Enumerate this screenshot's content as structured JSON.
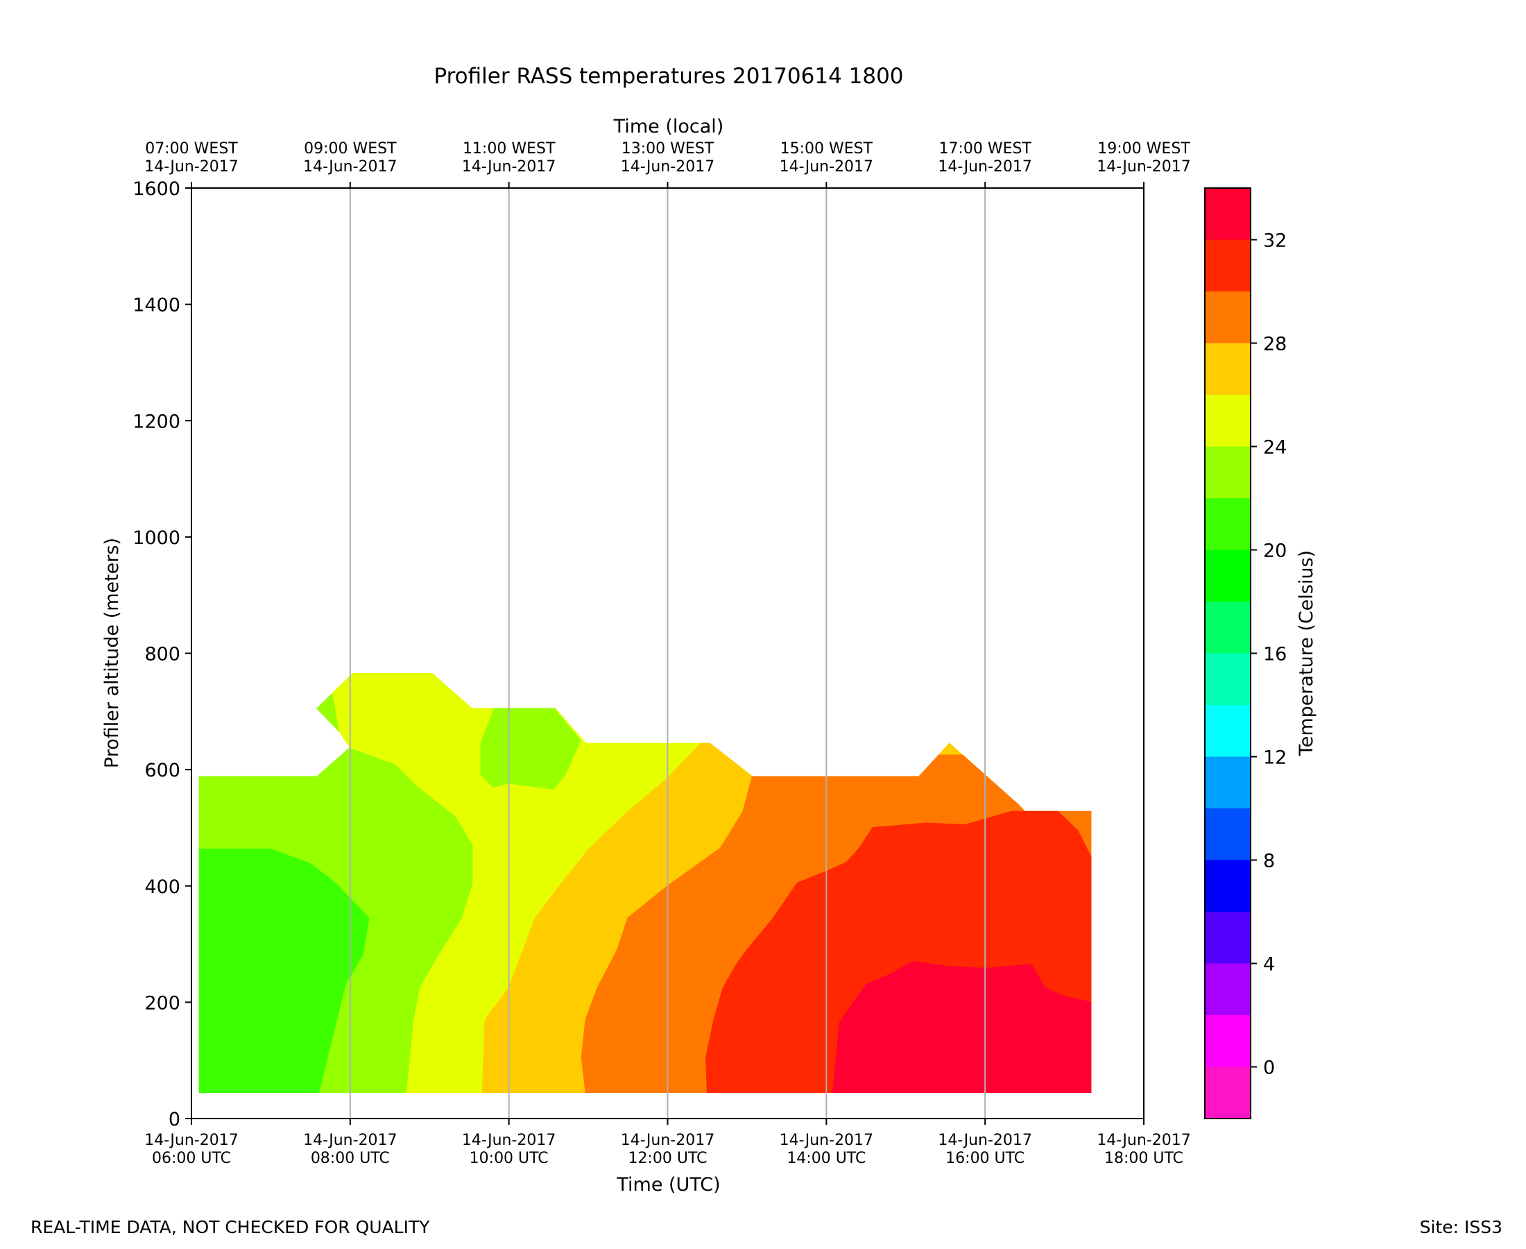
{
  "chart_data": {
    "type": "heatmap",
    "subtype": "filled-contour",
    "title": "Profiler RASS temperatures 20170614 1800",
    "xlabel": "Time (UTC)",
    "xlabel_top": "Time (local)",
    "ylabel": "Profiler altitude (meters)",
    "colorbar_label": "Temperature (Celsius)",
    "footer_left": "REAL-TIME DATA, NOT CHECKED FOR QUALITY",
    "footer_right": "Site: ISS3",
    "xlim": [
      "2017-06-14 06:00",
      "2017-06-14 18:00"
    ],
    "ylim": [
      0,
      1600
    ],
    "grid": "vertical",
    "x_ticks_bottom": [
      {
        "x": "2017-06-14 06:00",
        "line1": "14-Jun-2017",
        "line2": "06:00 UTC"
      },
      {
        "x": "2017-06-14 08:00",
        "line1": "14-Jun-2017",
        "line2": "08:00 UTC"
      },
      {
        "x": "2017-06-14 10:00",
        "line1": "14-Jun-2017",
        "line2": "10:00 UTC"
      },
      {
        "x": "2017-06-14 12:00",
        "line1": "14-Jun-2017",
        "line2": "12:00 UTC"
      },
      {
        "x": "2017-06-14 14:00",
        "line1": "14-Jun-2017",
        "line2": "14:00 UTC"
      },
      {
        "x": "2017-06-14 16:00",
        "line1": "14-Jun-2017",
        "line2": "16:00 UTC"
      },
      {
        "x": "2017-06-14 18:00",
        "line1": "14-Jun-2017",
        "line2": "18:00 UTC"
      }
    ],
    "x_ticks_top": [
      {
        "x": "2017-06-14 06:00",
        "line1": "07:00 WEST",
        "line2": "14-Jun-2017"
      },
      {
        "x": "2017-06-14 08:00",
        "line1": "09:00 WEST",
        "line2": "14-Jun-2017"
      },
      {
        "x": "2017-06-14 10:00",
        "line1": "11:00 WEST",
        "line2": "14-Jun-2017"
      },
      {
        "x": "2017-06-14 12:00",
        "line1": "13:00 WEST",
        "line2": "14-Jun-2017"
      },
      {
        "x": "2017-06-14 14:00",
        "line1": "15:00 WEST",
        "line2": "14-Jun-2017"
      },
      {
        "x": "2017-06-14 16:00",
        "line1": "17:00 WEST",
        "line2": "14-Jun-2017"
      },
      {
        "x": "2017-06-14 18:00",
        "line1": "19:00 WEST",
        "line2": "14-Jun-2017"
      }
    ],
    "y_ticks": [
      0,
      200,
      400,
      600,
      800,
      1000,
      1200,
      1400,
      1600
    ],
    "colorbar": {
      "boundaries": [
        -2,
        0,
        2,
        4,
        6,
        8,
        10,
        12,
        14,
        16,
        18,
        20,
        22,
        24,
        26,
        28,
        30,
        32,
        34
      ],
      "colors": [
        "#ff14c8",
        "#ff00ff",
        "#aa00ff",
        "#5500ff",
        "#0000ff",
        "#0050ff",
        "#00a0ff",
        "#00ffff",
        "#00ffb4",
        "#00ff64",
        "#00ff00",
        "#3cff00",
        "#96ff00",
        "#e6ff00",
        "#ffcc00",
        "#ff7800",
        "#ff2800",
        "#ff0032"
      ],
      "ticks": [
        0,
        4,
        8,
        12,
        16,
        20,
        24,
        28,
        32
      ]
    },
    "contour_regions": [
      {
        "level": 20,
        "color": "#3cff00",
        "points": [
          [
            "2017-06-14 06:06",
            45
          ],
          [
            "2017-06-14 06:06",
            465
          ],
          [
            "2017-06-14 07:00",
            465
          ],
          [
            "2017-06-14 07:30",
            440
          ],
          [
            "2017-06-14 07:50",
            405
          ],
          [
            "2017-06-14 08:15",
            345
          ],
          [
            "2017-06-14 08:10",
            280
          ],
          [
            "2017-06-14 07:57",
            230
          ],
          [
            "2017-06-14 07:37",
            45
          ]
        ]
      },
      {
        "level": 22,
        "color": "#96ff00",
        "points": [
          [
            "2017-06-14 07:37",
            45
          ],
          [
            "2017-06-14 07:57",
            230
          ],
          [
            "2017-06-14 08:10",
            280
          ],
          [
            "2017-06-14 08:15",
            345
          ],
          [
            "2017-06-14 07:50",
            405
          ],
          [
            "2017-06-14 07:30",
            440
          ],
          [
            "2017-06-14 07:00",
            465
          ],
          [
            "2017-06-14 06:06",
            465
          ],
          [
            "2017-06-14 06:06",
            588
          ],
          [
            "2017-06-14 07:35",
            588
          ],
          [
            "2017-06-14 08:00",
            638
          ],
          [
            "2017-06-14 08:34",
            610
          ],
          [
            "2017-06-14 08:52",
            570
          ],
          [
            "2017-06-14 09:20",
            520
          ],
          [
            "2017-06-14 09:33",
            470
          ],
          [
            "2017-06-14 09:33",
            405
          ],
          [
            "2017-06-14 09:25",
            345
          ],
          [
            "2017-06-14 09:07",
            280
          ],
          [
            "2017-06-14 08:53",
            225
          ],
          [
            "2017-06-14 08:48",
            165
          ],
          [
            "2017-06-14 08:43",
            45
          ]
        ]
      },
      {
        "level": 22,
        "color": "#96ff00",
        "points": [
          [
            "2017-06-14 07:35",
            705
          ],
          [
            "2017-06-14 07:47",
            732
          ],
          [
            "2017-06-14 07:52",
            665
          ]
        ]
      },
      {
        "level": 22,
        "color": "#96ff00",
        "points": [
          [
            "2017-06-14 09:38",
            590
          ],
          [
            "2017-06-14 09:48",
            568
          ],
          [
            "2017-06-14 10:00",
            575
          ],
          [
            "2017-06-14 10:34",
            565
          ],
          [
            "2017-06-14 10:43",
            590
          ],
          [
            "2017-06-14 10:55",
            650
          ],
          [
            "2017-06-14 10:35",
            705
          ],
          [
            "2017-06-14 09:48",
            705
          ],
          [
            "2017-06-14 09:38",
            645
          ]
        ]
      },
      {
        "level": 24,
        "color": "#e6ff00",
        "points": [
          [
            "2017-06-14 08:43",
            45
          ],
          [
            "2017-06-14 08:48",
            165
          ],
          [
            "2017-06-14 08:53",
            225
          ],
          [
            "2017-06-14 09:07",
            280
          ],
          [
            "2017-06-14 09:25",
            345
          ],
          [
            "2017-06-14 09:33",
            405
          ],
          [
            "2017-06-14 09:33",
            470
          ],
          [
            "2017-06-14 09:20",
            520
          ],
          [
            "2017-06-14 08:52",
            570
          ],
          [
            "2017-06-14 08:34",
            610
          ],
          [
            "2017-06-14 08:00",
            638
          ],
          [
            "2017-06-14 07:52",
            665
          ],
          [
            "2017-06-14 07:47",
            732
          ],
          [
            "2017-06-14 08:02",
            765
          ],
          [
            "2017-06-14 09:02",
            765
          ],
          [
            "2017-06-14 09:32",
            705
          ],
          [
            "2017-06-14 09:48",
            705
          ],
          [
            "2017-06-14 09:38",
            645
          ],
          [
            "2017-06-14 09:38",
            590
          ],
          [
            "2017-06-14 09:48",
            568
          ],
          [
            "2017-06-14 10:00",
            575
          ],
          [
            "2017-06-14 10:34",
            565
          ],
          [
            "2017-06-14 10:43",
            590
          ],
          [
            "2017-06-14 10:55",
            650
          ],
          [
            "2017-06-14 10:35",
            705
          ],
          [
            "2017-06-14 10:58",
            645
          ],
          [
            "2017-06-14 12:25",
            645
          ],
          [
            "2017-06-14 12:00",
            585
          ],
          [
            "2017-06-14 11:30",
            528
          ],
          [
            "2017-06-14 11:00",
            462
          ],
          [
            "2017-06-14 10:40",
            405
          ],
          [
            "2017-06-14 10:20",
            345
          ],
          [
            "2017-06-14 10:00",
            225
          ],
          [
            "2017-06-14 09:42",
            170
          ],
          [
            "2017-06-14 09:40",
            45
          ]
        ]
      },
      {
        "level": 26,
        "color": "#ffcc00",
        "points": [
          [
            "2017-06-14 09:40",
            45
          ],
          [
            "2017-06-14 09:42",
            170
          ],
          [
            "2017-06-14 10:00",
            225
          ],
          [
            "2017-06-14 10:20",
            345
          ],
          [
            "2017-06-14 10:40",
            405
          ],
          [
            "2017-06-14 11:00",
            462
          ],
          [
            "2017-06-14 11:30",
            528
          ],
          [
            "2017-06-14 12:00",
            585
          ],
          [
            "2017-06-14 12:25",
            645
          ],
          [
            "2017-06-14 12:32",
            645
          ],
          [
            "2017-06-14 13:04",
            588
          ],
          [
            "2017-06-14 12:57",
            528
          ],
          [
            "2017-06-14 12:40",
            465
          ],
          [
            "2017-06-14 12:00",
            400
          ],
          [
            "2017-06-14 11:30",
            345
          ],
          [
            "2017-06-14 11:22",
            290
          ],
          [
            "2017-06-14 11:07",
            225
          ],
          [
            "2017-06-14 10:58",
            170
          ],
          [
            "2017-06-14 10:55",
            105
          ],
          [
            "2017-06-14 10:58",
            45
          ]
        ]
      },
      {
        "level": 26,
        "color": "#ffcc00",
        "points": [
          [
            "2017-06-14 15:25",
            625
          ],
          [
            "2017-06-14 15:33",
            645
          ],
          [
            "2017-06-14 15:43",
            625
          ]
        ]
      },
      {
        "level": 28,
        "color": "#ff7800",
        "points": [
          [
            "2017-06-14 10:58",
            45
          ],
          [
            "2017-06-14 10:55",
            105
          ],
          [
            "2017-06-14 10:58",
            170
          ],
          [
            "2017-06-14 11:07",
            225
          ],
          [
            "2017-06-14 11:22",
            290
          ],
          [
            "2017-06-14 11:30",
            345
          ],
          [
            "2017-06-14 12:00",
            400
          ],
          [
            "2017-06-14 12:40",
            465
          ],
          [
            "2017-06-14 12:57",
            528
          ],
          [
            "2017-06-14 13:04",
            588
          ],
          [
            "2017-06-14 15:10",
            588
          ],
          [
            "2017-06-14 15:25",
            625
          ],
          [
            "2017-06-14 15:43",
            625
          ],
          [
            "2017-06-14 16:25",
            540
          ],
          [
            "2017-06-14 16:30",
            528
          ],
          [
            "2017-06-14 17:20",
            528
          ],
          [
            "2017-06-14 17:20",
            450
          ],
          [
            "2017-06-14 17:10",
            470
          ],
          [
            "2017-06-14 16:20",
            528
          ],
          [
            "2017-06-14 15:45",
            505
          ],
          [
            "2017-06-14 15:15",
            508
          ],
          [
            "2017-06-14 14:35",
            500
          ],
          [
            "2017-06-14 14:25",
            465
          ],
          [
            "2017-06-14 14:15",
            440
          ],
          [
            "2017-06-14 14:00",
            425
          ],
          [
            "2017-06-14 13:38",
            405
          ],
          [
            "2017-06-14 13:20",
            345
          ],
          [
            "2017-06-14 13:00",
            290
          ],
          [
            "2017-06-14 12:52",
            265
          ],
          [
            "2017-06-14 12:42",
            225
          ],
          [
            "2017-06-14 12:35",
            170
          ],
          [
            "2017-06-14 12:29",
            105
          ],
          [
            "2017-06-14 12:30",
            45
          ]
        ]
      },
      {
        "level": 30,
        "color": "#ff2800",
        "points": [
          [
            "2017-06-14 12:30",
            45
          ],
          [
            "2017-06-14 12:29",
            105
          ],
          [
            "2017-06-14 12:35",
            170
          ],
          [
            "2017-06-14 12:42",
            225
          ],
          [
            "2017-06-14 12:52",
            265
          ],
          [
            "2017-06-14 13:00",
            290
          ],
          [
            "2017-06-14 13:20",
            345
          ],
          [
            "2017-06-14 13:38",
            405
          ],
          [
            "2017-06-14 14:00",
            425
          ],
          [
            "2017-06-14 14:15",
            440
          ],
          [
            "2017-06-14 14:25",
            465
          ],
          [
            "2017-06-14 14:35",
            500
          ],
          [
            "2017-06-14 15:15",
            508
          ],
          [
            "2017-06-14 15:45",
            505
          ],
          [
            "2017-06-14 16:20",
            528
          ],
          [
            "2017-06-14 16:55",
            528
          ],
          [
            "2017-06-14 17:10",
            495
          ],
          [
            "2017-06-14 17:20",
            450
          ],
          [
            "2017-06-14 17:20",
            200
          ],
          [
            "2017-06-14 17:00",
            210
          ],
          [
            "2017-06-14 16:45",
            225
          ],
          [
            "2017-06-14 16:35",
            265
          ],
          [
            "2017-06-14 16:00",
            258
          ],
          [
            "2017-06-14 15:30",
            262
          ],
          [
            "2017-06-14 15:05",
            270
          ],
          [
            "2017-06-14 14:50",
            250
          ],
          [
            "2017-06-14 14:30",
            230
          ],
          [
            "2017-06-14 14:10",
            165
          ],
          [
            "2017-06-14 14:05",
            45
          ]
        ]
      },
      {
        "level": 32,
        "color": "#ff0032",
        "points": [
          [
            "2017-06-14 14:05",
            45
          ],
          [
            "2017-06-14 14:10",
            165
          ],
          [
            "2017-06-14 14:30",
            230
          ],
          [
            "2017-06-14 14:50",
            250
          ],
          [
            "2017-06-14 15:05",
            270
          ],
          [
            "2017-06-14 15:30",
            262
          ],
          [
            "2017-06-14 16:00",
            258
          ],
          [
            "2017-06-14 16:35",
            265
          ],
          [
            "2017-06-14 16:45",
            225
          ],
          [
            "2017-06-14 17:00",
            210
          ],
          [
            "2017-06-14 17:20",
            200
          ],
          [
            "2017-06-14 17:20",
            45
          ]
        ]
      }
    ]
  }
}
